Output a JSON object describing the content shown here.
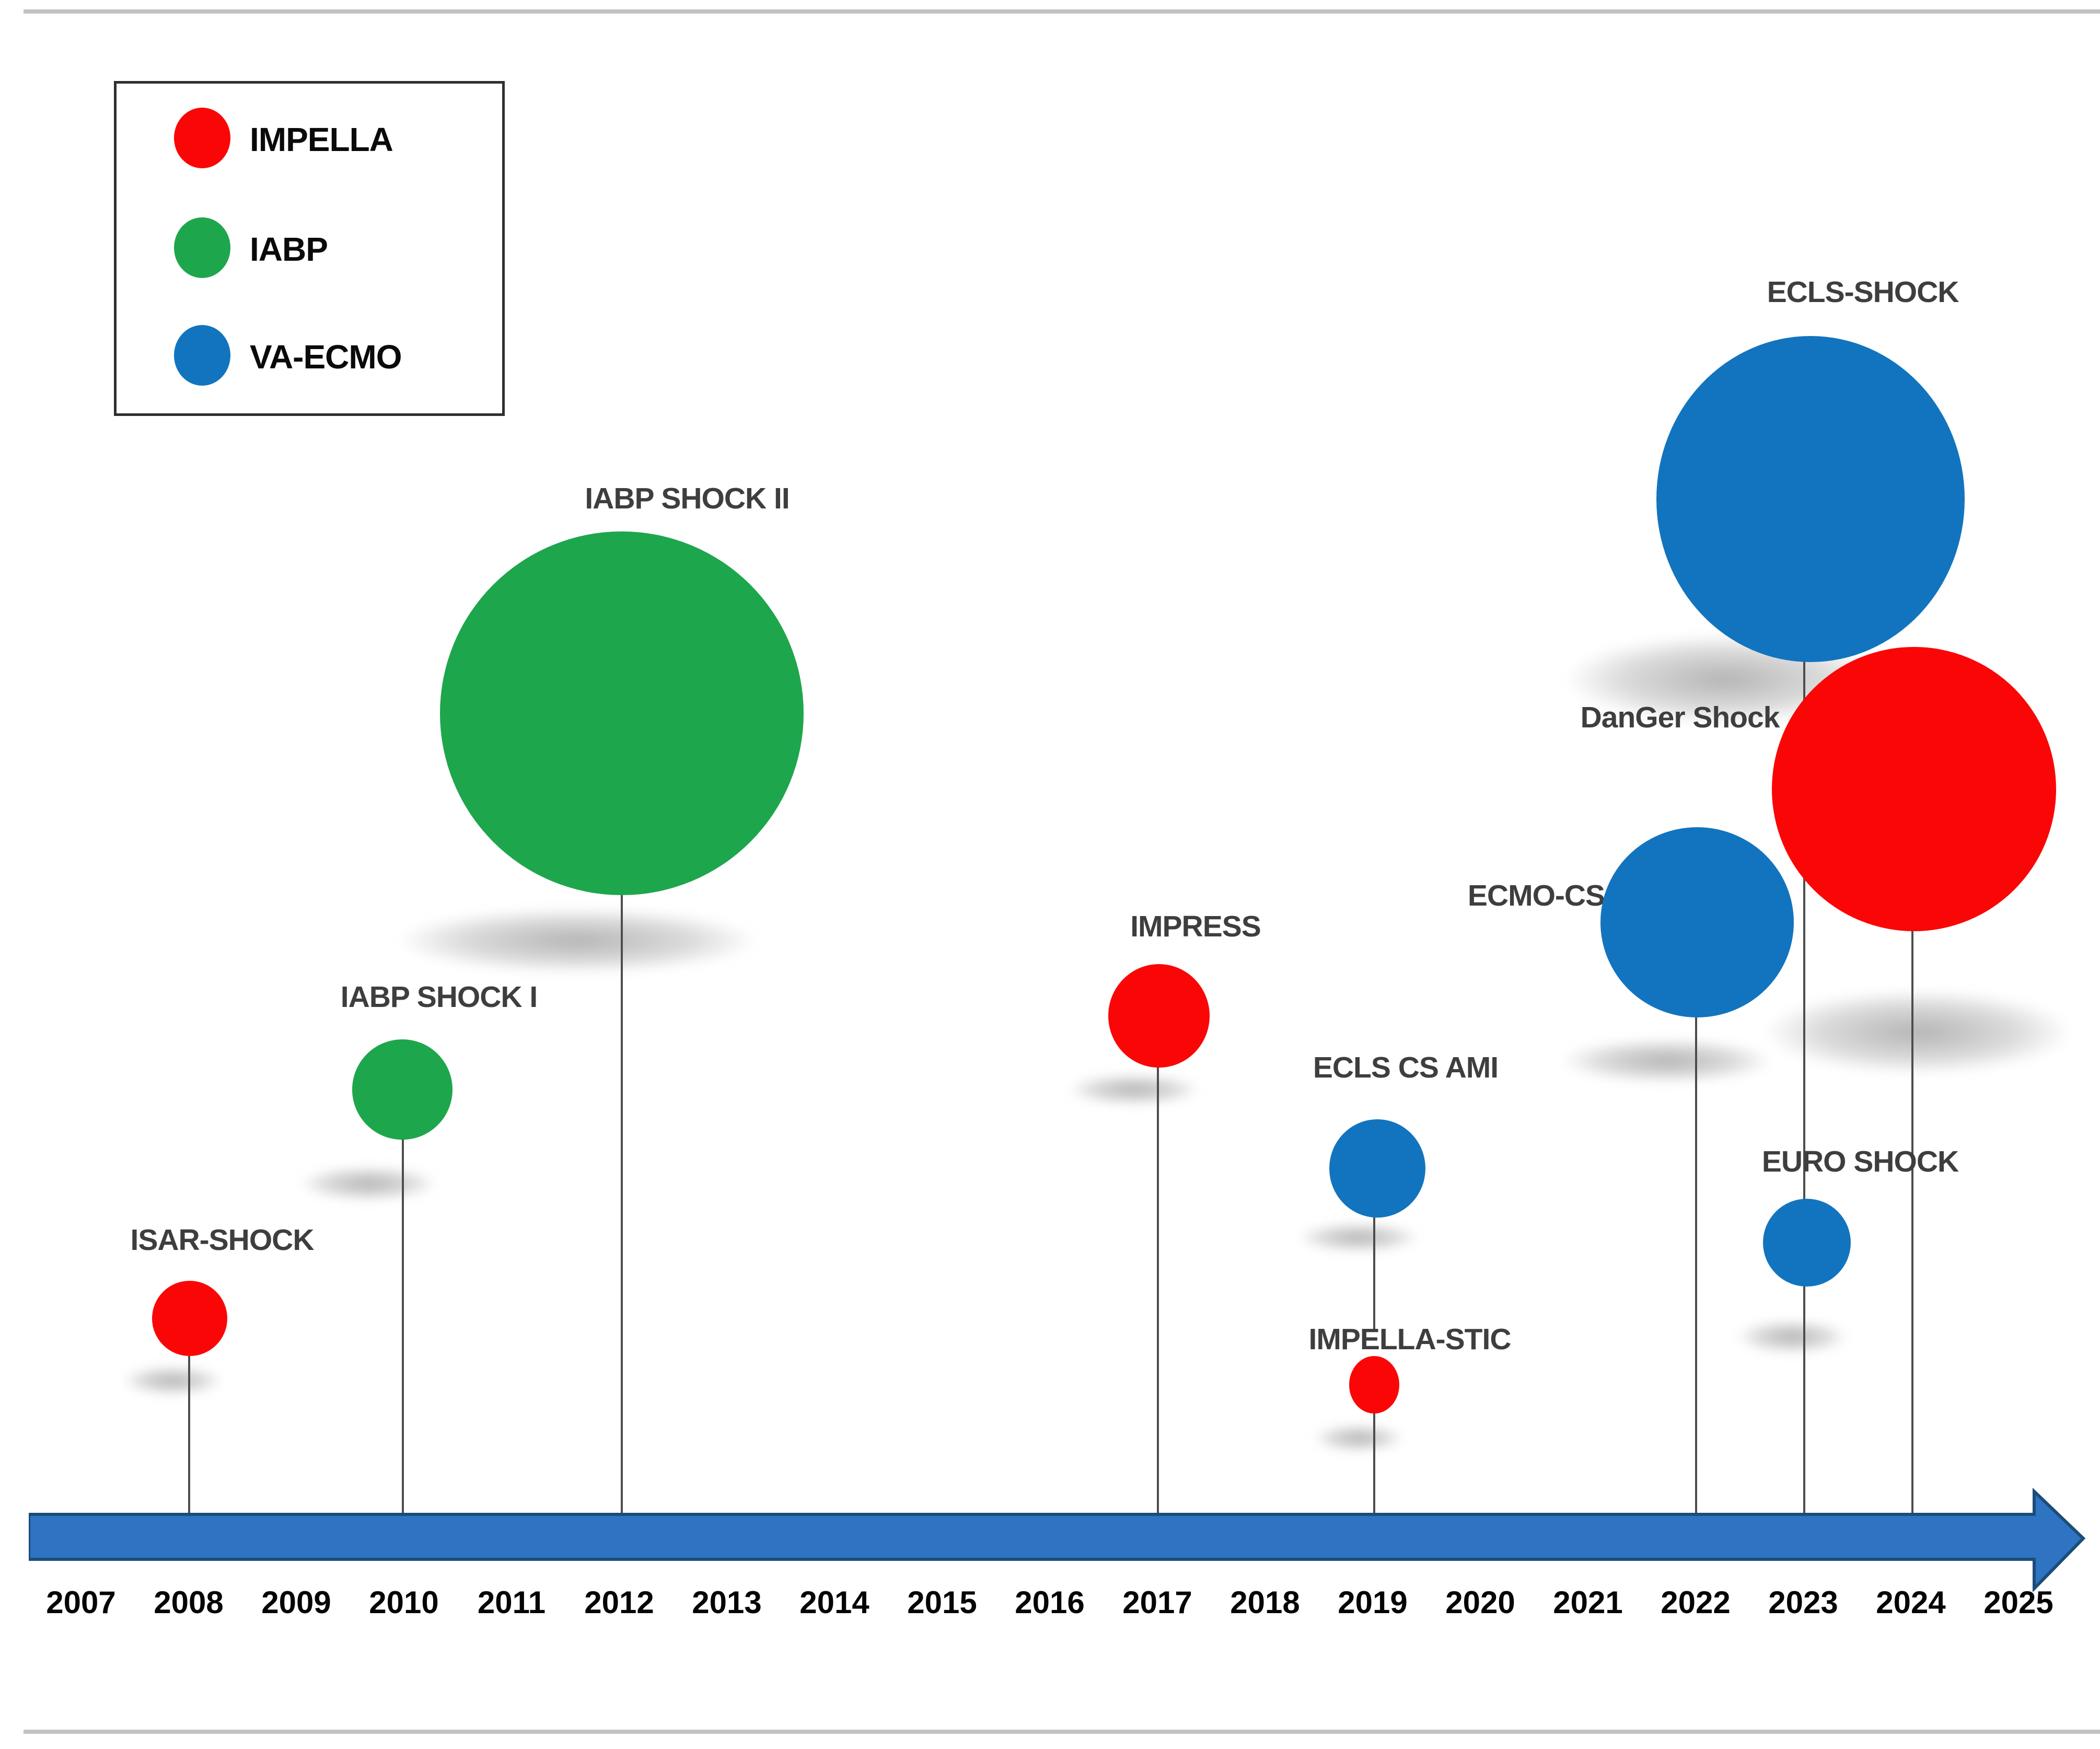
{
  "figure": {
    "top_rule": true,
    "bottom_rule": true,
    "legend": {
      "items": [
        {
          "label": "IMPELLA",
          "color": "#fb0606"
        },
        {
          "label": "IABP",
          "color": "#1ea64c"
        },
        {
          "label": "VA-ECMO",
          "color": "#1274be"
        }
      ]
    },
    "timeline": {
      "arrow_fill": "#2e74c3",
      "arrow_outline": "#1c4c78"
    }
  },
  "chart_data": {
    "type": "bubble",
    "title": "",
    "xlabel": "",
    "ylabel": "",
    "x_ticks": [
      "2007",
      "2008",
      "2009",
      "2010",
      "2011",
      "2012",
      "2013",
      "2014",
      "2015",
      "2016",
      "2017",
      "2018",
      "2019",
      "2020",
      "2021",
      "2022",
      "2023",
      "2024",
      "2025"
    ],
    "x_range": [
      2007,
      2025
    ],
    "legend_position": "top-left",
    "grid": false,
    "size_encoding": "bubble area ~ relative trial size (unlabeled)",
    "trials": [
      {
        "name": "ISAR-SHOCK",
        "year": 2008,
        "device": "IMPELLA",
        "color": "#fb0606",
        "bubble_radius_px": 72
      },
      {
        "name": "IABP SHOCK I",
        "year": 2010,
        "device": "IABP",
        "color": "#1ea64c",
        "bubble_radius_px": 96
      },
      {
        "name": "IABP SHOCK II",
        "year": 2012,
        "device": "IABP",
        "color": "#1ea64c",
        "bubble_radius_px": 348
      },
      {
        "name": "IMPRESS",
        "year": 2017,
        "device": "IMPELLA",
        "color": "#fb0606",
        "bubble_radius_px": 98
      },
      {
        "name": "ECLS CS AMI",
        "year": 2019,
        "device": "VA-ECMO",
        "color": "#1274be",
        "bubble_radius_px": 93
      },
      {
        "name": "IMPELLA-STIC",
        "year": 2019,
        "device": "IMPELLA",
        "color": "#fb0606",
        "bubble_radius_px": 52
      },
      {
        "name": "ECMO-CS",
        "year": 2022,
        "device": "VA-ECMO",
        "color": "#1274be",
        "bubble_radius_px": 184
      },
      {
        "name": "ECLS-SHOCK",
        "year": 2023,
        "device": "VA-ECMO",
        "color": "#1274be",
        "bubble_radius_px": 303
      },
      {
        "name": "EURO SHOCK",
        "year": 2023,
        "device": "VA-ECMO",
        "color": "#1274be",
        "bubble_radius_px": 84
      },
      {
        "name": "DanGer Shock",
        "year": 2024,
        "device": "IMPELLA",
        "color": "#fb0606",
        "bubble_radius_px": 272
      }
    ]
  }
}
